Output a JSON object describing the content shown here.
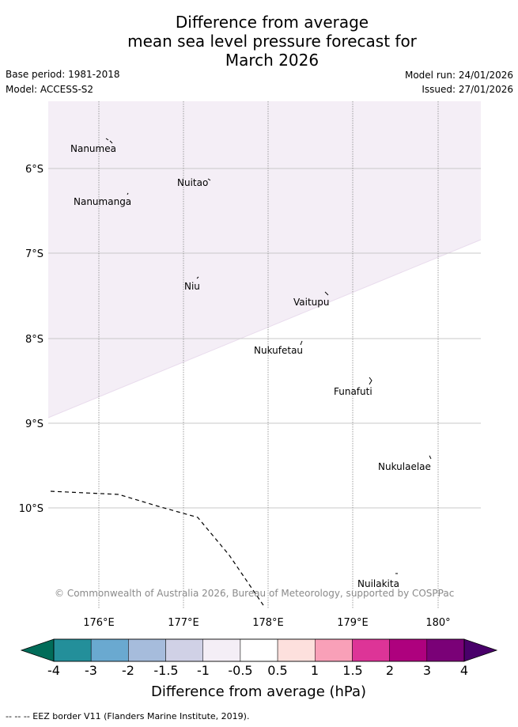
{
  "title": {
    "line1": "Difference from average",
    "line2": "mean sea level pressure forecast for",
    "line3": "March 2026"
  },
  "meta": {
    "base_period": "Base period: 1981-2018",
    "model": "Model: ACCESS-S2",
    "model_run": "Model run: 24/01/2026",
    "issued": "Issued: 27/01/2026"
  },
  "map": {
    "lat_labels": [
      "6°S",
      "7°S",
      "8°S",
      "9°S",
      "10°S"
    ],
    "lon_labels": [
      "176°E",
      "177°E",
      "178°E",
      "179°E",
      "180°"
    ],
    "places": [
      "Nanumea",
      "Nuitao",
      "Nanumanga",
      "Niu",
      "Vaitupu",
      "Nukufetau",
      "Funafuti",
      "Nukulaelae",
      "Nuilakita"
    ],
    "copyright": "© Commonwealth of Australia 2026, Bureau of Meteorology, supported by COSPPac",
    "anomaly_band_color": "#f4eef6"
  },
  "colorbar": {
    "ticks": [
      "-4",
      "-3",
      "-2",
      "-1.5",
      "-1",
      "-0.5",
      "0.5",
      "1",
      "1.5",
      "2",
      "3",
      "4"
    ],
    "colors": [
      "#238f9a",
      "#6aa9d0",
      "#a6bcdc",
      "#d0d1e6",
      "#f4eef6",
      "#ffffff",
      "#fde0dd",
      "#f9a0b8",
      "#dd3497",
      "#ae017e",
      "#7a0177"
    ],
    "under_color": "#016c59",
    "over_color": "#49006a",
    "label": "Difference from average (hPa)"
  },
  "legend": {
    "eez": "-- -- -- EEZ border V11 (Flanders Marine Institute, 2019)."
  }
}
